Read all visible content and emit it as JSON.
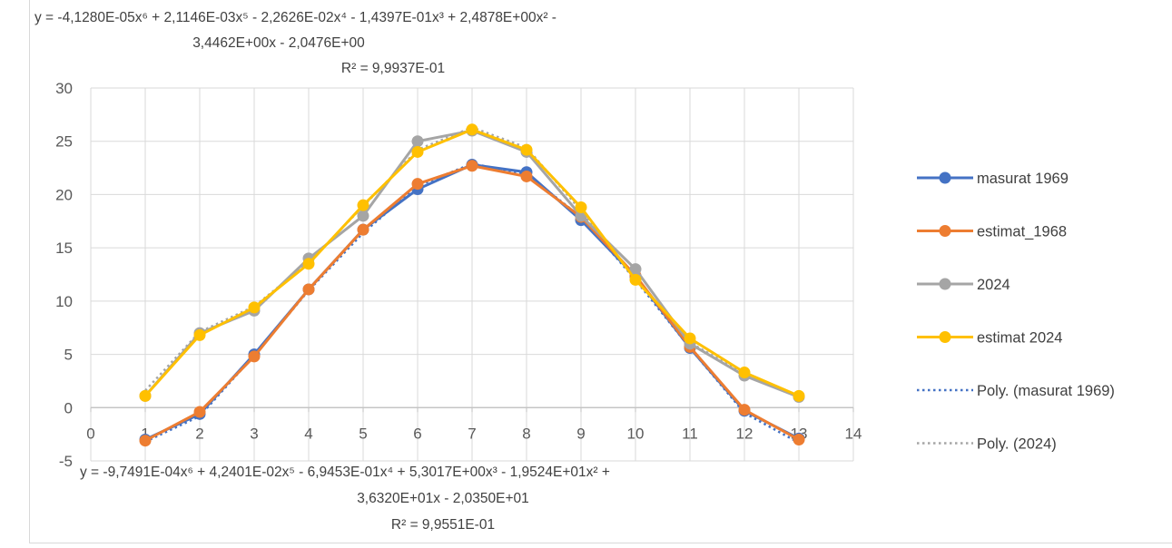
{
  "chart_data": {
    "type": "line",
    "title": "",
    "xlabel": "",
    "ylabel": "",
    "xlim": [
      0,
      14
    ],
    "ylim": [
      -5,
      30
    ],
    "x_ticks": [
      "0",
      "1",
      "2",
      "3",
      "4",
      "5",
      "6",
      "7",
      "8",
      "9",
      "10",
      "11",
      "12",
      "13",
      "14"
    ],
    "y_ticks": [
      "-5",
      "0",
      "5",
      "10",
      "15",
      "20",
      "25",
      "30"
    ],
    "grid": true,
    "legend_position": "right",
    "series": [
      {
        "name": "masurat 1969",
        "color": "#4472c4",
        "style": "solid-markers",
        "x": [
          1,
          2,
          3,
          4,
          5,
          6,
          7,
          8,
          9,
          10,
          11,
          12,
          13
        ],
        "values": [
          -3.0,
          -0.6,
          5.0,
          11.1,
          16.7,
          20.5,
          22.8,
          22.1,
          17.6,
          12.3,
          5.6,
          -0.3,
          -2.9
        ]
      },
      {
        "name": "estimat_1968",
        "color": "#ed7d31",
        "style": "solid-markers",
        "x": [
          1,
          2,
          3,
          4,
          5,
          6,
          7,
          8,
          9,
          10,
          11,
          12,
          13
        ],
        "values": [
          -3.1,
          -0.4,
          4.8,
          11.1,
          16.7,
          21.0,
          22.7,
          21.7,
          17.9,
          12.4,
          5.7,
          -0.2,
          -3.0
        ]
      },
      {
        "name": "2024",
        "color": "#a5a5a5",
        "style": "solid-markers",
        "x": [
          1,
          2,
          3,
          4,
          5,
          6,
          7,
          8,
          9,
          10,
          11,
          12,
          13
        ],
        "values": [
          1.1,
          7.0,
          9.1,
          14.0,
          18.0,
          25.0,
          26.0,
          24.0,
          18.0,
          13.0,
          6.0,
          3.0,
          1.0
        ]
      },
      {
        "name": "estimat 2024",
        "color": "#ffc000",
        "style": "solid-markers",
        "x": [
          1,
          2,
          3,
          4,
          5,
          6,
          7,
          8,
          9,
          10,
          11,
          12,
          13
        ],
        "values": [
          1.1,
          6.8,
          9.4,
          13.5,
          19.0,
          24.0,
          26.1,
          24.2,
          18.8,
          12.0,
          6.5,
          3.3,
          1.1
        ]
      },
      {
        "name": "Poly. (masurat 1969)",
        "color": "#4472c4",
        "style": "dotted",
        "x": [
          1,
          2,
          3,
          4,
          5,
          6,
          7,
          8,
          9,
          10,
          11,
          12,
          13
        ],
        "values": [
          -3.2,
          -0.8,
          4.9,
          11.0,
          16.4,
          20.8,
          22.9,
          21.9,
          17.9,
          12.0,
          5.6,
          -0.5,
          -3.3
        ]
      },
      {
        "name": "Poly. (2024)",
        "color": "#a5a5a5",
        "style": "dotted",
        "x": [
          1,
          2,
          3,
          4,
          5,
          6,
          7,
          8,
          9,
          10,
          11,
          12,
          13
        ],
        "values": [
          1.6,
          7.1,
          9.5,
          13.6,
          18.9,
          24.2,
          26.3,
          24.4,
          18.5,
          12.2,
          6.1,
          3.2,
          1.1
        ]
      }
    ],
    "annotations": {
      "eq_2024_line1": "y = -4,1280E-05x⁶ + 2,1146E-03x⁵ - 2,2626E-02x⁴ - 1,4397E-01x³ + 2,4878E+00x² -",
      "eq_2024_line2": "3,4462E+00x - 2,0476E+00",
      "eq_2024_r2": "R² = 9,9937E-01",
      "eq_1969_line1": "y = -9,7491E-04x⁶ + 4,2401E-02x⁵ - 6,9453E-01x⁴ + 5,3017E+00x³ - 1,9524E+01x² +",
      "eq_1969_line2": "3,6320E+01x - 2,0350E+01",
      "eq_1969_r2": "R² = 9,9551E-01"
    }
  }
}
